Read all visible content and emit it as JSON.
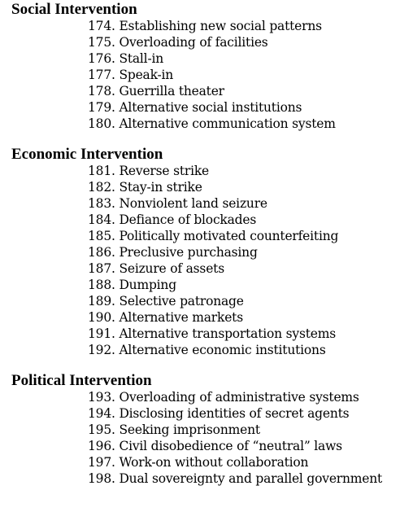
{
  "sections": [
    {
      "heading": "Social Intervention",
      "items": [
        "174. Establishing new social patterns",
        "175. Overloading of facilities",
        "176. Stall-in",
        "177. Speak-in",
        "178. Guerrilla theater",
        "179. Alternative social institutions",
        "180. Alternative communication system"
      ]
    },
    {
      "heading": "Economic Intervention",
      "items": [
        "181. Reverse strike",
        "182. Stay-in strike",
        "183. Nonviolent land seizure",
        "184. Defiance of blockades",
        "185. Politically motivated counterfeiting",
        "186. Preclusive purchasing",
        "187. Seizure of assets",
        "188. Dumping",
        "189. Selective patronage",
        "190. Alternative markets",
        "191. Alternative transportation systems",
        "192. Alternative economic institutions"
      ]
    },
    {
      "heading": "Political Intervention",
      "items": [
        "193. Overloading of administrative systems",
        "194. Disclosing identities of secret agents",
        "195. Seeking imprisonment",
        "196. Civil disobedience of “neutral” laws",
        "197. Work-on without collaboration",
        "198. Dual sovereignty and parallel government"
      ]
    }
  ]
}
